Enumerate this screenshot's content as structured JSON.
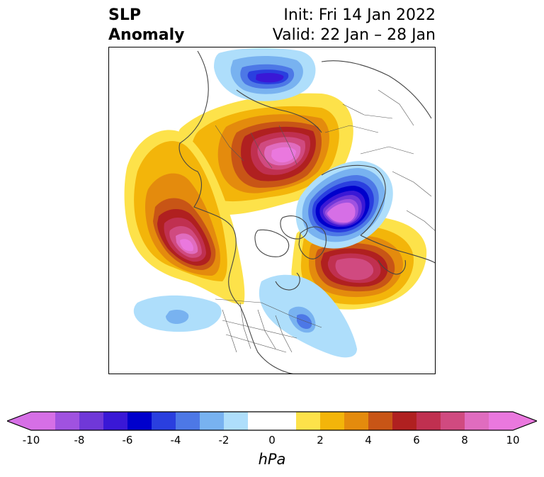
{
  "title": {
    "left_line1": "SLP",
    "left_line2": "Anomaly",
    "right_line1": "Init: Fri 14 Jan 2022",
    "right_line2": "Valid: 22 Jan – 28 Jan"
  },
  "map": {
    "projection": "north-polar-stereographic",
    "features": [
      "coastlines",
      "country-borders",
      "us-state-borders"
    ],
    "anomaly_centers": [
      {
        "region": "Arctic / Central Siberia",
        "sign": "positive",
        "peak": "> 10"
      },
      {
        "region": "Gulf of Alaska / NE Pacific",
        "sign": "positive",
        "peak": "> 10"
      },
      {
        "region": "Western Europe / NE Atlantic",
        "sign": "positive",
        "peak": "8 to 10"
      },
      {
        "region": "Scandinavia / Barents Sea",
        "sign": "negative",
        "peak": "< -10"
      },
      {
        "region": "Northern Russia",
        "sign": "negative",
        "peak": "-6 to -8"
      },
      {
        "region": "Eastern North America",
        "sign": "negative",
        "peak": "-2 to -4"
      },
      {
        "region": "Central Pacific",
        "sign": "negative",
        "peak": "-2 to -4"
      }
    ]
  },
  "colorbar": {
    "label": "hPa",
    "extend": "both",
    "levels": [
      -10,
      -9,
      -8,
      -7,
      -6,
      -5,
      -4,
      -3,
      -2,
      -1,
      1,
      2,
      3,
      4,
      5,
      6,
      7,
      8,
      9,
      10
    ],
    "colors": [
      "#d66fe6",
      "#a052e0",
      "#7038d8",
      "#3a18d6",
      "#0000cc",
      "#2a3fdf",
      "#4d78e6",
      "#78b2f0",
      "#aedefb",
      "#ffffff",
      "#fde24a",
      "#f3b50a",
      "#e48b0d",
      "#c85516",
      "#b02020",
      "#c03050",
      "#d04a80",
      "#e06cbf",
      "#ea78de"
    ],
    "under_color": "#d66fe6",
    "over_color": "#ea78de",
    "tick_labels": [
      "-10",
      "-8",
      "-6",
      "-4",
      "-2",
      "0",
      "2",
      "4",
      "6",
      "8",
      "10"
    ],
    "tick_values": [
      -10,
      -8,
      -6,
      -4,
      -2,
      0,
      2,
      4,
      6,
      8,
      10
    ]
  }
}
